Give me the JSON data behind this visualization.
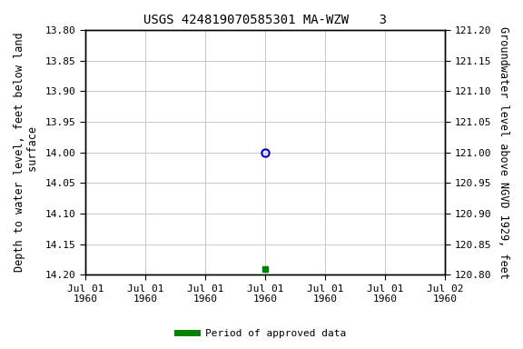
{
  "title": "USGS 424819070585301 MA-WZW    3",
  "ylabel_left": "Depth to water level, feet below land\n surface",
  "ylabel_right": "Groundwater level above NGVD 1929, feet",
  "ylim_left": [
    13.8,
    14.2
  ],
  "ylim_right": [
    120.8,
    121.2
  ],
  "yticks_left": [
    13.8,
    13.85,
    13.9,
    13.95,
    14.0,
    14.05,
    14.1,
    14.15,
    14.2
  ],
  "yticks_right": [
    120.8,
    120.85,
    120.9,
    120.95,
    121.0,
    121.05,
    121.1,
    121.15,
    121.2
  ],
  "xlim": [
    0,
    6
  ],
  "xtick_positions": [
    0,
    1,
    2,
    3,
    4,
    5,
    6
  ],
  "xtick_labels": [
    "Jul 01\n1960",
    "Jul 01\n1960",
    "Jul 01\n1960",
    "Jul 01\n1960",
    "Jul 01\n1960",
    "Jul 01\n1960",
    "Jul 02\n1960"
  ],
  "data_open_x": 3,
  "data_open_y": 14.0,
  "data_filled_x": 3,
  "data_filled_y": 14.19,
  "bg_color": "#ffffff",
  "grid_color": "#c8c8c8",
  "open_marker_color": "#0000cc",
  "filled_marker_color": "#008000",
  "legend_label": "Period of approved data",
  "legend_color": "#008000",
  "title_fontsize": 10,
  "axis_label_fontsize": 8.5,
  "tick_fontsize": 8
}
